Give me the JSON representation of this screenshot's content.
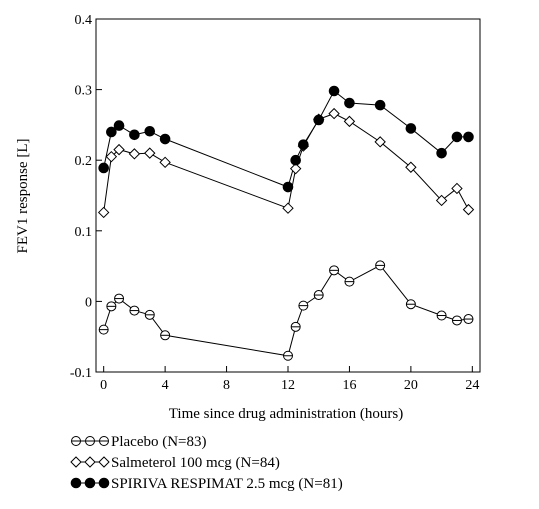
{
  "chart_data": {
    "type": "line",
    "xlabel": "Time since drug administration (hours)",
    "ylabel": "FEV1 response [L]",
    "xlim": [
      -0.5,
      24.5
    ],
    "ylim": [
      -0.1,
      0.4
    ],
    "x_ticks": [
      0,
      4,
      8,
      12,
      16,
      20,
      24
    ],
    "x_tick_labels": [
      "0",
      "4",
      "8",
      "12",
      "16",
      "20",
      "24"
    ],
    "y_ticks": [
      -0.1,
      0.0,
      0.1,
      0.2,
      0.3,
      0.4
    ],
    "y_tick_labels": [
      "-0.1",
      "0",
      "0.1",
      "0.2",
      "0.3",
      "0.4"
    ],
    "grid": false,
    "legend_position": "bottom-left",
    "series": [
      {
        "name": "Placebo (N=83)",
        "marker": "open-circle",
        "x": [
          0,
          0.5,
          1,
          2,
          3,
          4,
          12,
          12.5,
          13,
          14,
          15,
          16,
          18,
          20,
          22,
          23,
          23.75
        ],
        "y": [
          -0.04,
          -0.007,
          0.004,
          -0.013,
          -0.019,
          -0.048,
          -0.077,
          -0.036,
          -0.006,
          0.009,
          0.044,
          0.028,
          0.051,
          -0.004,
          -0.02,
          -0.027,
          -0.025
        ]
      },
      {
        "name": "Salmeterol 100 mcg (N=84)",
        "marker": "open-diamond",
        "x": [
          0,
          0.5,
          1,
          2,
          3,
          4,
          12,
          12.5,
          13,
          14,
          15,
          16,
          18,
          20,
          22,
          23,
          23.75
        ],
        "y": [
          0.126,
          0.205,
          0.215,
          0.209,
          0.21,
          0.197,
          0.132,
          0.188,
          0.22,
          0.258,
          0.266,
          0.255,
          0.226,
          0.19,
          0.143,
          0.16,
          0.13
        ]
      },
      {
        "name": "SPIRIVA RESPIMAT 2.5 mcg (N=81)",
        "marker": "filled-circle",
        "x": [
          0,
          0.5,
          1,
          2,
          3,
          4,
          12,
          12.5,
          13,
          14,
          15,
          16,
          18,
          20,
          22,
          23,
          23.75
        ],
        "y": [
          0.189,
          0.24,
          0.249,
          0.236,
          0.241,
          0.23,
          0.162,
          0.2,
          0.222,
          0.257,
          0.298,
          0.281,
          0.278,
          0.245,
          0.21,
          0.233,
          0.233
        ]
      }
    ]
  }
}
